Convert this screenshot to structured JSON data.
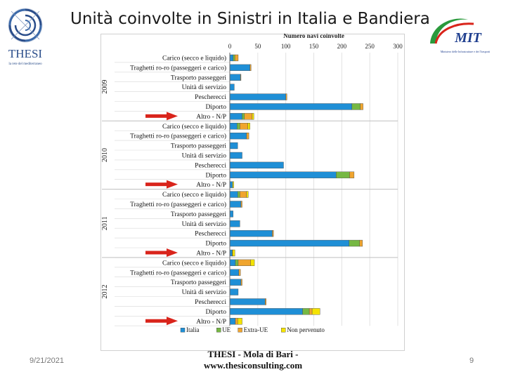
{
  "slide": {
    "title": "Unità coinvolte in Sinistri in Italia e Bandiera",
    "date": "9/21/2021",
    "footer_line1": "THESI - Mola di Bari -",
    "footer_line2": "www.thesiconsulting.com",
    "page_number": "9"
  },
  "logos": {
    "left_brand": "THESI",
    "left_tagline": "la rete del mediterraneo",
    "right_brand": "MIT",
    "right_tagline": "Ministero delle Infrastrutture e dei Trasporti"
  },
  "colors": {
    "italia": "#1f8fd6",
    "ue": "#76b843",
    "extra_ue": "#f0a52e",
    "non_pervenuto": "#f4e300",
    "arrow": "#d9241b"
  },
  "chart_data": {
    "type": "bar",
    "orientation": "horizontal",
    "stacked": true,
    "axis_title": "Numero navi coinvolte",
    "xlim": [
      0,
      300
    ],
    "xticks": [
      0,
      50,
      100,
      150,
      200,
      250,
      300
    ],
    "series_names": [
      "Italia",
      "UE",
      "Extra-UE",
      "Non pervenuto"
    ],
    "groups": [
      {
        "year": "2009",
        "categories": [
          {
            "label": "Carico (secco e liquido)",
            "values": [
              6,
              3,
              6,
              0
            ]
          },
          {
            "label": "Traghetti ro-ro (passeggeri e carico)",
            "values": [
              36,
              0,
              2,
              0
            ]
          },
          {
            "label": "Trasporto passeggeri",
            "values": [
              19,
              0,
              1,
              0
            ]
          },
          {
            "label": "Unità di servizio",
            "values": [
              8,
              0,
              0,
              0
            ]
          },
          {
            "label": "Pescherecci",
            "values": [
              100,
              0,
              2,
              0
            ]
          },
          {
            "label": "Diporto",
            "values": [
              218,
              15,
              5,
              0
            ]
          },
          {
            "label": "Altro - N/P",
            "values": [
              22,
              4,
              14,
              3
            ]
          }
        ]
      },
      {
        "year": "2010",
        "categories": [
          {
            "label": "Carico (secco e liquido)",
            "values": [
              13,
              5,
              14,
              4
            ]
          },
          {
            "label": "Traghetti ro-ro (passeggeri e carico)",
            "values": [
              30,
              0,
              4,
              0
            ]
          },
          {
            "label": "Trasporto passeggeri",
            "values": [
              14,
              0,
              0,
              0
            ]
          },
          {
            "label": "Unità di servizio",
            "values": [
              22,
              0,
              0,
              0
            ]
          },
          {
            "label": "Pescherecci",
            "values": [
              96,
              0,
              0,
              0
            ]
          },
          {
            "label": "Diporto",
            "values": [
              190,
              24,
              8,
              0
            ]
          },
          {
            "label": "Altro - N/P",
            "values": [
              5,
              0,
              0,
              2
            ]
          }
        ]
      },
      {
        "year": "2011",
        "categories": [
          {
            "label": "Carico (secco e liquido)",
            "values": [
              14,
              4,
              12,
              3
            ]
          },
          {
            "label": "Traghetti ro-ro (passeggeri e carico)",
            "values": [
              20,
              0,
              2,
              0
            ]
          },
          {
            "label": "Trasporto passeggeri",
            "values": [
              6,
              0,
              0,
              0
            ]
          },
          {
            "label": "Unità di servizio",
            "values": [
              18,
              0,
              0,
              0
            ]
          },
          {
            "label": "Pescherecci",
            "values": [
              76,
              0,
              2,
              0
            ]
          },
          {
            "label": "Diporto",
            "values": [
              213,
              19,
              5,
              0
            ]
          },
          {
            "label": "Altro - N/P",
            "values": [
              4,
              1,
              0,
              4
            ]
          }
        ]
      },
      {
        "year": "2012",
        "categories": [
          {
            "label": "Carico (secco e liquido)",
            "values": [
              10,
              5,
              22,
              7
            ]
          },
          {
            "label": "Traghetti ro-ro (passeggeri e carico)",
            "values": [
              16,
              0,
              3,
              0
            ]
          },
          {
            "label": "Trasporto passeggeri",
            "values": [
              20,
              0,
              2,
              0
            ]
          },
          {
            "label": "Unità di servizio",
            "values": [
              15,
              0,
              0,
              0
            ]
          },
          {
            "label": "Pescherecci",
            "values": [
              63,
              0,
              2,
              0
            ]
          },
          {
            "label": "Diporto",
            "values": [
              130,
              12,
              5,
              14
            ]
          },
          {
            "label": "Altro - N/P",
            "values": [
              10,
              0,
              4,
              8
            ]
          }
        ]
      }
    ],
    "highlighted_rows": [
      "Altro - N/P"
    ]
  }
}
